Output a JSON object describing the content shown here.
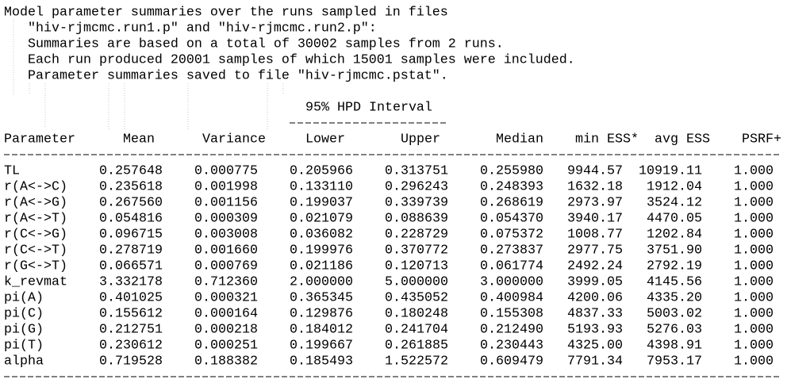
{
  "header": {
    "lines": [
      "Model parameter summaries over the runs sampled in files",
      "\"hiv-rjmcmc.run1.p\" and \"hiv-rjmcmc.run2.p\":",
      "Summaries are based on a total of 30002 samples from 2 runs.",
      "Each run produced 20001 samples of which 15001 samples were included.",
      "Parameter summaries saved to file \"hiv-rjmcmc.pstat\"."
    ]
  },
  "table": {
    "group_header": "95% HPD Interval",
    "columns": [
      "Parameter",
      "Mean",
      "Variance",
      "Lower",
      "Upper",
      "Median",
      "min ESS*",
      "avg ESS",
      "PSRF+"
    ],
    "rows": [
      [
        "TL",
        "0.257648",
        "0.000775",
        "0.205966",
        "0.313751",
        "0.255980",
        "9944.57",
        "10919.11",
        "1.000"
      ],
      [
        "r(A<->C)",
        "0.235618",
        "0.001998",
        "0.133110",
        "0.296243",
        "0.248393",
        "1632.18",
        "1912.04",
        "1.000"
      ],
      [
        "r(A<->G)",
        "0.267560",
        "0.001156",
        "0.199037",
        "0.339739",
        "0.268619",
        "2973.97",
        "3524.12",
        "1.000"
      ],
      [
        "r(A<->T)",
        "0.054816",
        "0.000309",
        "0.021079",
        "0.088639",
        "0.054370",
        "3940.17",
        "4470.05",
        "1.000"
      ],
      [
        "r(C<->G)",
        "0.096715",
        "0.003008",
        "0.036082",
        "0.228729",
        "0.075372",
        "1008.77",
        "1202.84",
        "1.000"
      ],
      [
        "r(C<->T)",
        "0.278719",
        "0.001660",
        "0.199976",
        "0.370772",
        "0.273837",
        "2977.75",
        "3751.90",
        "1.000"
      ],
      [
        "r(G<->T)",
        "0.066571",
        "0.000769",
        "0.021186",
        "0.120713",
        "0.061774",
        "2492.24",
        "2792.19",
        "1.000"
      ],
      [
        "k_revmat",
        "3.332178",
        "0.712360",
        "2.000000",
        "5.000000",
        "3.000000",
        "3999.05",
        "4145.56",
        "1.000"
      ],
      [
        "pi(A)",
        "0.401025",
        "0.000321",
        "0.365345",
        "0.435052",
        "0.400984",
        "4200.06",
        "4335.20",
        "1.000"
      ],
      [
        "pi(C)",
        "0.155612",
        "0.000164",
        "0.129876",
        "0.180248",
        "0.155308",
        "4837.33",
        "5003.02",
        "1.000"
      ],
      [
        "pi(G)",
        "0.212751",
        "0.000218",
        "0.184012",
        "0.241704",
        "0.212490",
        "5193.93",
        "5276.03",
        "1.000"
      ],
      [
        "pi(T)",
        "0.230612",
        "0.000251",
        "0.199667",
        "0.261885",
        "0.230443",
        "4325.00",
        "4398.91",
        "1.000"
      ],
      [
        "alpha",
        "0.719528",
        "0.188382",
        "0.185493",
        "1.522572",
        "0.609479",
        "7791.34",
        "7953.17",
        "1.000"
      ]
    ]
  }
}
